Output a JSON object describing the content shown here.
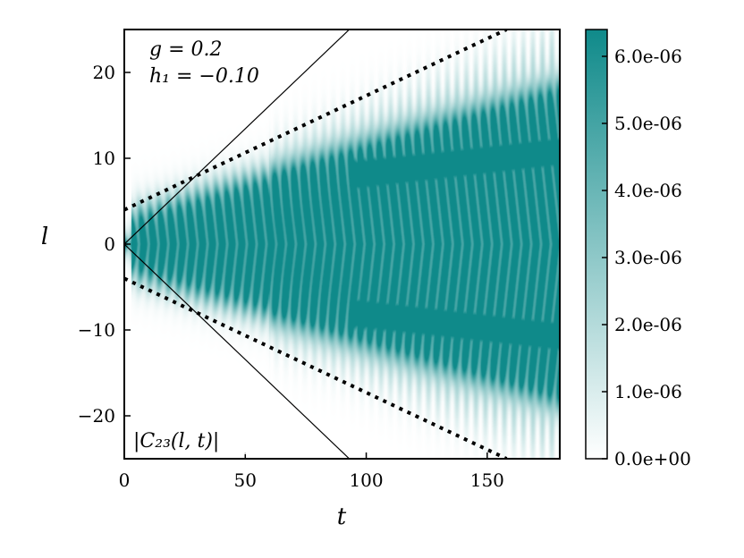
{
  "chart_data": {
    "type": "heatmap",
    "title": "",
    "xlabel": "t",
    "ylabel": "l",
    "xlim": [
      0,
      180
    ],
    "ylim": [
      -25,
      25
    ],
    "xticks": [
      0,
      50,
      100,
      150
    ],
    "yticks": [
      -20,
      -10,
      0,
      10,
      20
    ],
    "xtick_labels": [
      "0",
      "50",
      "100",
      "150"
    ],
    "ytick_labels": [
      "−20",
      "−10",
      "0",
      "10",
      "20"
    ],
    "annotations": {
      "params": [
        "g = 0.2",
        "h₁ = −0.10"
      ],
      "quantity": "|C₂₃(l, t)|"
    },
    "colormap": {
      "low": "#ffffff",
      "high": "#0f8a8a"
    },
    "colorbar": {
      "min": 0,
      "max": 6.4e-06,
      "ticks": [
        0,
        1e-06,
        2e-06,
        3e-06,
        4e-06,
        5e-06,
        6e-06
      ],
      "tick_labels": [
        "0.0e+00",
        "1.0e-06",
        "2.0e-06",
        "3.0e-06",
        "4.0e-06",
        "5.0e-06",
        "6.0e-06"
      ]
    },
    "light_cone_solid": {
      "slope": 0.268,
      "points": [
        [
          0,
          0
        ],
        [
          93,
          25
        ],
        [
          93,
          -25
        ]
      ]
    },
    "light_cone_dotted": {
      "intercept": 4,
      "slope": 0.134,
      "points": [
        [
          0,
          4
        ],
        [
          158,
          25
        ],
        [
          0,
          -4
        ],
        [
          158,
          -25
        ]
      ]
    },
    "grid": false
  }
}
